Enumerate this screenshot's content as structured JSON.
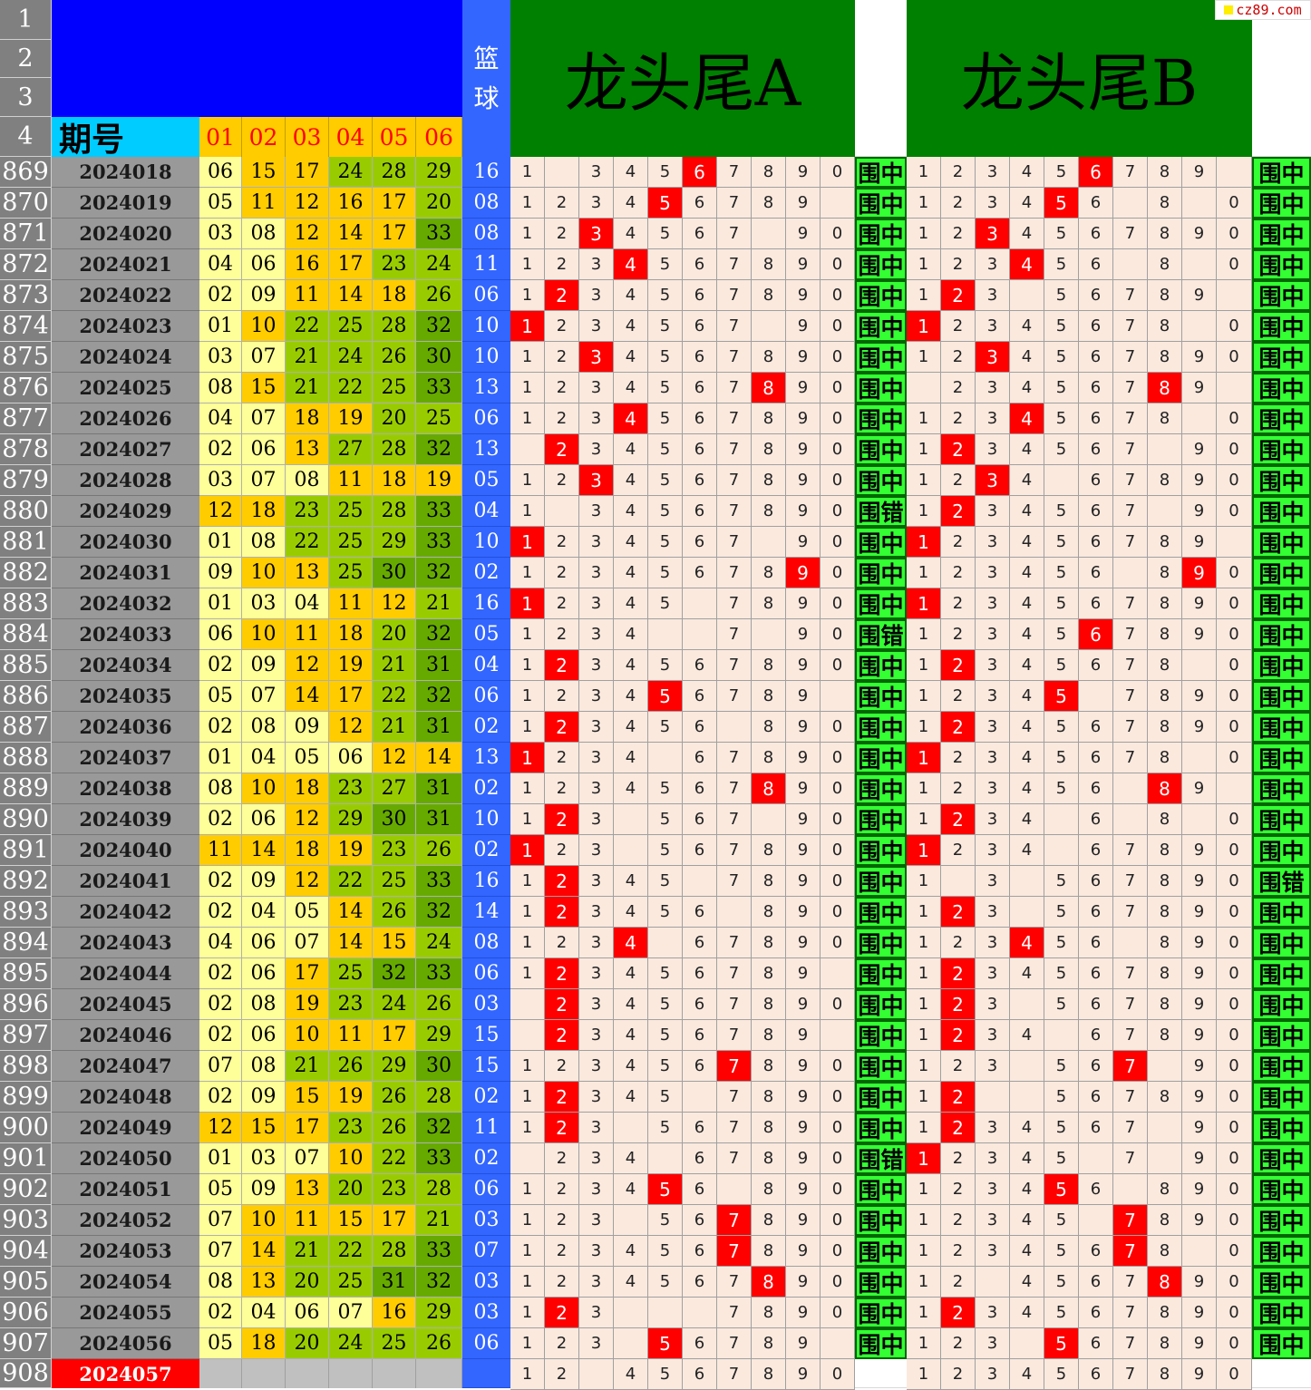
{
  "header": {
    "qihao_label": "期号",
    "ball_cols": [
      "01",
      "02",
      "03",
      "04",
      "05",
      "06"
    ],
    "lanqiu_label": [
      "篮",
      "球"
    ],
    "title_a": "龙头尾A",
    "title_b": "龙头尾B",
    "header_row_numbers": [
      "1",
      "2",
      "3",
      "4"
    ],
    "logo_text": "cz89.com"
  },
  "result_labels": {
    "hit": "围中",
    "miss": "围错"
  },
  "rows": [
    {
      "n": "869",
      "p": "2024018",
      "b": [
        "06",
        "15",
        "17",
        "24",
        "28",
        "29"
      ],
      "k": "16",
      "a": "1 _ 3 4 5 *6 7 8 9 0",
      "ra": "z",
      "bb": "1 2 3 4 5 *6 7 8 9 _",
      "rb": "z"
    },
    {
      "n": "870",
      "p": "2024019",
      "b": [
        "05",
        "11",
        "12",
        "16",
        "17",
        "20"
      ],
      "k": "08",
      "a": "1 2 3 4 *5 6 7 8 9 _",
      "ra": "z",
      "bb": "1 2 3 4 *5 6 _ 8 _ 0",
      "rb": "z"
    },
    {
      "n": "871",
      "p": "2024020",
      "b": [
        "03",
        "08",
        "12",
        "14",
        "17",
        "33"
      ],
      "k": "08",
      "a": "1 2 *3 4 5 6 7 _ 9 0",
      "ra": "z",
      "bb": "1 2 *3 4 5 6 7 8 9 0",
      "rb": "z"
    },
    {
      "n": "872",
      "p": "2024021",
      "b": [
        "04",
        "06",
        "16",
        "17",
        "23",
        "24"
      ],
      "k": "11",
      "a": "1 2 3 *4 5 6 7 8 9 0",
      "ra": "z",
      "bb": "1 2 3 *4 5 6 _ 8 _ 0",
      "rb": "z"
    },
    {
      "n": "873",
      "p": "2024022",
      "b": [
        "02",
        "09",
        "11",
        "14",
        "18",
        "26"
      ],
      "k": "06",
      "a": "1 *2 3 4 5 6 7 8 9 0",
      "ra": "z",
      "bb": "1 *2 3 _ 5 6 7 8 9 _",
      "rb": "z"
    },
    {
      "n": "874",
      "p": "2024023",
      "b": [
        "01",
        "10",
        "22",
        "25",
        "28",
        "32"
      ],
      "k": "10",
      "a": "*1 2 3 4 5 6 7 _ 9 0",
      "ra": "z",
      "bb": "*1 2 3 4 5 6 7 8 _ 0",
      "rb": "z"
    },
    {
      "n": "875",
      "p": "2024024",
      "b": [
        "03",
        "07",
        "21",
        "24",
        "26",
        "30"
      ],
      "k": "10",
      "a": "1 2 *3 4 5 6 7 8 9 0",
      "ra": "z",
      "bb": "1 2 *3 4 5 6 7 8 9 0",
      "rb": "z"
    },
    {
      "n": "876",
      "p": "2024025",
      "b": [
        "08",
        "15",
        "21",
        "22",
        "25",
        "33"
      ],
      "k": "13",
      "a": "1 2 3 4 5 6 7 *8 9 0",
      "ra": "z",
      "bb": "_ 2 3 4 5 6 7 *8 9 _",
      "rb": "z"
    },
    {
      "n": "877",
      "p": "2024026",
      "b": [
        "04",
        "07",
        "18",
        "19",
        "20",
        "25"
      ],
      "k": "06",
      "a": "1 2 3 *4 5 6 7 8 9 0",
      "ra": "z",
      "bb": "1 2 3 *4 5 6 7 8 _ 0",
      "rb": "z"
    },
    {
      "n": "878",
      "p": "2024027",
      "b": [
        "02",
        "06",
        "13",
        "27",
        "28",
        "32"
      ],
      "k": "13",
      "a": "_ *2 3 4 5 6 7 8 9 0",
      "ra": "z",
      "bb": "1 *2 3 4 5 6 7 _ 9 0",
      "rb": "z"
    },
    {
      "n": "879",
      "p": "2024028",
      "b": [
        "03",
        "07",
        "08",
        "11",
        "18",
        "19"
      ],
      "k": "05",
      "a": "1 2 *3 4 5 6 7 8 9 0",
      "ra": "z",
      "bb": "1 2 *3 4 _ 6 7 8 9 0",
      "rb": "z"
    },
    {
      "n": "880",
      "p": "2024029",
      "b": [
        "12",
        "18",
        "23",
        "25",
        "28",
        "33"
      ],
      "k": "04",
      "a": "1 _ 3 4 5 6 7 8 9 0",
      "ra": "c",
      "bb": "1 *2 3 4 5 6 7 _ 9 0",
      "rb": "z"
    },
    {
      "n": "881",
      "p": "2024030",
      "b": [
        "01",
        "08",
        "22",
        "25",
        "29",
        "33"
      ],
      "k": "10",
      "a": "*1 2 3 4 5 6 7 _ 9 0",
      "ra": "z",
      "bb": "*1 2 3 4 5 6 7 8 9 _",
      "rb": "z"
    },
    {
      "n": "882",
      "p": "2024031",
      "b": [
        "09",
        "10",
        "13",
        "25",
        "30",
        "32"
      ],
      "k": "02",
      "a": "1 2 3 4 5 6 7 8 *9 0",
      "ra": "z",
      "bb": "1 2 3 4 5 6 _ 8 *9 0",
      "rb": "z"
    },
    {
      "n": "883",
      "p": "2024032",
      "b": [
        "01",
        "03",
        "04",
        "11",
        "12",
        "21"
      ],
      "k": "16",
      "a": "*1 2 3 4 5 _ 7 8 9 0",
      "ra": "z",
      "bb": "*1 2 3 4 5 6 7 8 9 0",
      "rb": "z"
    },
    {
      "n": "884",
      "p": "2024033",
      "b": [
        "06",
        "10",
        "11",
        "18",
        "20",
        "32"
      ],
      "k": "05",
      "a": "1 2 3 4 _ _ 7 _ 9 0",
      "ra": "c",
      "bb": "1 2 3 4 5 *6 7 8 9 0",
      "rb": "z"
    },
    {
      "n": "885",
      "p": "2024034",
      "b": [
        "02",
        "09",
        "12",
        "19",
        "21",
        "31"
      ],
      "k": "04",
      "a": "1 *2 3 4 5 6 7 8 9 0",
      "ra": "z",
      "bb": "1 *2 3 4 5 6 7 8 _ 0",
      "rb": "z"
    },
    {
      "n": "886",
      "p": "2024035",
      "b": [
        "05",
        "07",
        "14",
        "17",
        "22",
        "32"
      ],
      "k": "06",
      "a": "1 2 3 4 *5 6 7 8 9 _",
      "ra": "z",
      "bb": "1 2 3 4 *5 _ 7 8 9 0",
      "rb": "z"
    },
    {
      "n": "887",
      "p": "2024036",
      "b": [
        "02",
        "08",
        "09",
        "12",
        "21",
        "31"
      ],
      "k": "02",
      "a": "1 *2 3 4 5 6 _ 8 9 0",
      "ra": "z",
      "bb": "1 *2 3 4 5 6 7 8 9 0",
      "rb": "z"
    },
    {
      "n": "888",
      "p": "2024037",
      "b": [
        "01",
        "04",
        "05",
        "06",
        "12",
        "14"
      ],
      "k": "13",
      "a": "*1 2 3 4 _ 6 7 8 9 0",
      "ra": "z",
      "bb": "*1 2 3 4 5 6 7 8 _ 0",
      "rb": "z"
    },
    {
      "n": "889",
      "p": "2024038",
      "b": [
        "08",
        "10",
        "18",
        "23",
        "27",
        "31"
      ],
      "k": "02",
      "a": "1 2 3 4 5 6 7 *8 9 0",
      "ra": "z",
      "bb": "1 2 3 4 5 6 _ *8 9 _",
      "rb": "z"
    },
    {
      "n": "890",
      "p": "2024039",
      "b": [
        "02",
        "06",
        "12",
        "29",
        "30",
        "31"
      ],
      "k": "10",
      "a": "1 *2 3 _ 5 6 7 _ 9 0",
      "ra": "z",
      "bb": "1 *2 3 4 _ 6 _ 8 _ 0",
      "rb": "z"
    },
    {
      "n": "891",
      "p": "2024040",
      "b": [
        "11",
        "14",
        "18",
        "19",
        "23",
        "26"
      ],
      "k": "02",
      "a": "*1 2 3 _ 5 6 7 8 9 0",
      "ra": "z",
      "bb": "*1 2 3 4 _ 6 7 8 9 0",
      "rb": "z"
    },
    {
      "n": "892",
      "p": "2024041",
      "b": [
        "02",
        "09",
        "12",
        "22",
        "25",
        "33"
      ],
      "k": "16",
      "a": "1 *2 3 4 5 _ 7 8 9 0",
      "ra": "z",
      "bb": "1 _ 3 _ 5 6 7 8 9 0",
      "rb": "c"
    },
    {
      "n": "893",
      "p": "2024042",
      "b": [
        "02",
        "04",
        "05",
        "14",
        "26",
        "32"
      ],
      "k": "14",
      "a": "1 *2 3 4 5 6 _ 8 9 0",
      "ra": "z",
      "bb": "1 *2 3 _ 5 6 7 8 9 0",
      "rb": "z"
    },
    {
      "n": "894",
      "p": "2024043",
      "b": [
        "04",
        "06",
        "07",
        "14",
        "15",
        "24"
      ],
      "k": "08",
      "a": "1 2 3 *4 _ 6 7 8 9 0",
      "ra": "z",
      "bb": "1 2 3 *4 5 6 _ 8 9 0",
      "rb": "z"
    },
    {
      "n": "895",
      "p": "2024044",
      "b": [
        "02",
        "06",
        "17",
        "25",
        "32",
        "33"
      ],
      "k": "06",
      "a": "1 *2 3 4 5 6 7 8 9 _",
      "ra": "z",
      "bb": "1 *2 3 4 5 6 7 8 9 0",
      "rb": "z"
    },
    {
      "n": "896",
      "p": "2024045",
      "b": [
        "02",
        "08",
        "19",
        "23",
        "24",
        "26"
      ],
      "k": "03",
      "a": "_ *2 3 4 5 6 7 8 9 0",
      "ra": "z",
      "bb": "1 *2 3 _ 5 6 7 8 9 0",
      "rb": "z"
    },
    {
      "n": "897",
      "p": "2024046",
      "b": [
        "02",
        "06",
        "10",
        "11",
        "17",
        "29"
      ],
      "k": "15",
      "a": "_ *2 3 4 5 6 7 8 9 _",
      "ra": "z",
      "bb": "1 *2 3 4 _ 6 7 8 9 0",
      "rb": "z"
    },
    {
      "n": "898",
      "p": "2024047",
      "b": [
        "07",
        "08",
        "21",
        "26",
        "29",
        "30"
      ],
      "k": "15",
      "a": "1 2 3 4 5 6 *7 8 9 0",
      "ra": "z",
      "bb": "1 2 3 _ 5 6 *7 _ 9 0",
      "rb": "z"
    },
    {
      "n": "899",
      "p": "2024048",
      "b": [
        "02",
        "09",
        "15",
        "19",
        "26",
        "28"
      ],
      "k": "02",
      "a": "1 *2 3 4 5 _ 7 8 9 0",
      "ra": "z",
      "bb": "1 *2 _ _ 5 6 7 8 9 0",
      "rb": "z"
    },
    {
      "n": "900",
      "p": "2024049",
      "b": [
        "12",
        "15",
        "17",
        "23",
        "26",
        "32"
      ],
      "k": "11",
      "a": "1 *2 3 _ 5 6 7 8 9 0",
      "ra": "z",
      "bb": "1 *2 3 4 5 6 7 _ 9 0",
      "rb": "z"
    },
    {
      "n": "901",
      "p": "2024050",
      "b": [
        "01",
        "03",
        "07",
        "10",
        "22",
        "33"
      ],
      "k": "02",
      "a": "_ 2 3 4 _ 6 7 8 9 0",
      "ra": "c",
      "bb": "*1 2 3 4 5 _ 7 _ 9 0",
      "rb": "z"
    },
    {
      "n": "902",
      "p": "2024051",
      "b": [
        "05",
        "09",
        "13",
        "20",
        "23",
        "28"
      ],
      "k": "06",
      "a": "1 2 3 4 *5 6 _ 8 9 0",
      "ra": "z",
      "bb": "1 2 3 4 *5 6 _ 8 9 0",
      "rb": "z"
    },
    {
      "n": "903",
      "p": "2024052",
      "b": [
        "07",
        "10",
        "11",
        "15",
        "17",
        "21"
      ],
      "k": "03",
      "a": "1 2 3 _ 5 6 *7 8 9 0",
      "ra": "z",
      "bb": "1 2 3 4 5 _ *7 8 9 0",
      "rb": "z"
    },
    {
      "n": "904",
      "p": "2024053",
      "b": [
        "07",
        "14",
        "21",
        "22",
        "28",
        "33"
      ],
      "k": "07",
      "a": "1 2 3 4 5 6 *7 8 9 0",
      "ra": "z",
      "bb": "1 2 3 4 5 6 *7 8 _ 0",
      "rb": "z"
    },
    {
      "n": "905",
      "p": "2024054",
      "b": [
        "08",
        "13",
        "20",
        "25",
        "31",
        "32"
      ],
      "k": "03",
      "a": "1 2 3 4 5 6 7 *8 9 0",
      "ra": "z",
      "bb": "1 2 _ 4 5 6 7 *8 9 0",
      "rb": "z"
    },
    {
      "n": "906",
      "p": "2024055",
      "b": [
        "02",
        "04",
        "06",
        "07",
        "16",
        "29"
      ],
      "k": "03",
      "a": "1 *2 3 _ _ _ 7 8 9 0",
      "ra": "z",
      "bb": "1 *2 3 4 5 6 7 8 9 0",
      "rb": "z"
    },
    {
      "n": "907",
      "p": "2024056",
      "b": [
        "05",
        "18",
        "20",
        "24",
        "25",
        "26"
      ],
      "k": "06",
      "a": "1 2 3 _ *5 6 7 8 9 _",
      "ra": "z",
      "bb": "1 2 3 _ *5 6 7 8 9 0",
      "rb": "z"
    }
  ],
  "last_row": {
    "n": "908",
    "p": "2024057",
    "a": "1 2 _ 4 5 6 7 8 9 0",
    "bb": "1 2 3 4 5 6 7 8 9 0"
  }
}
